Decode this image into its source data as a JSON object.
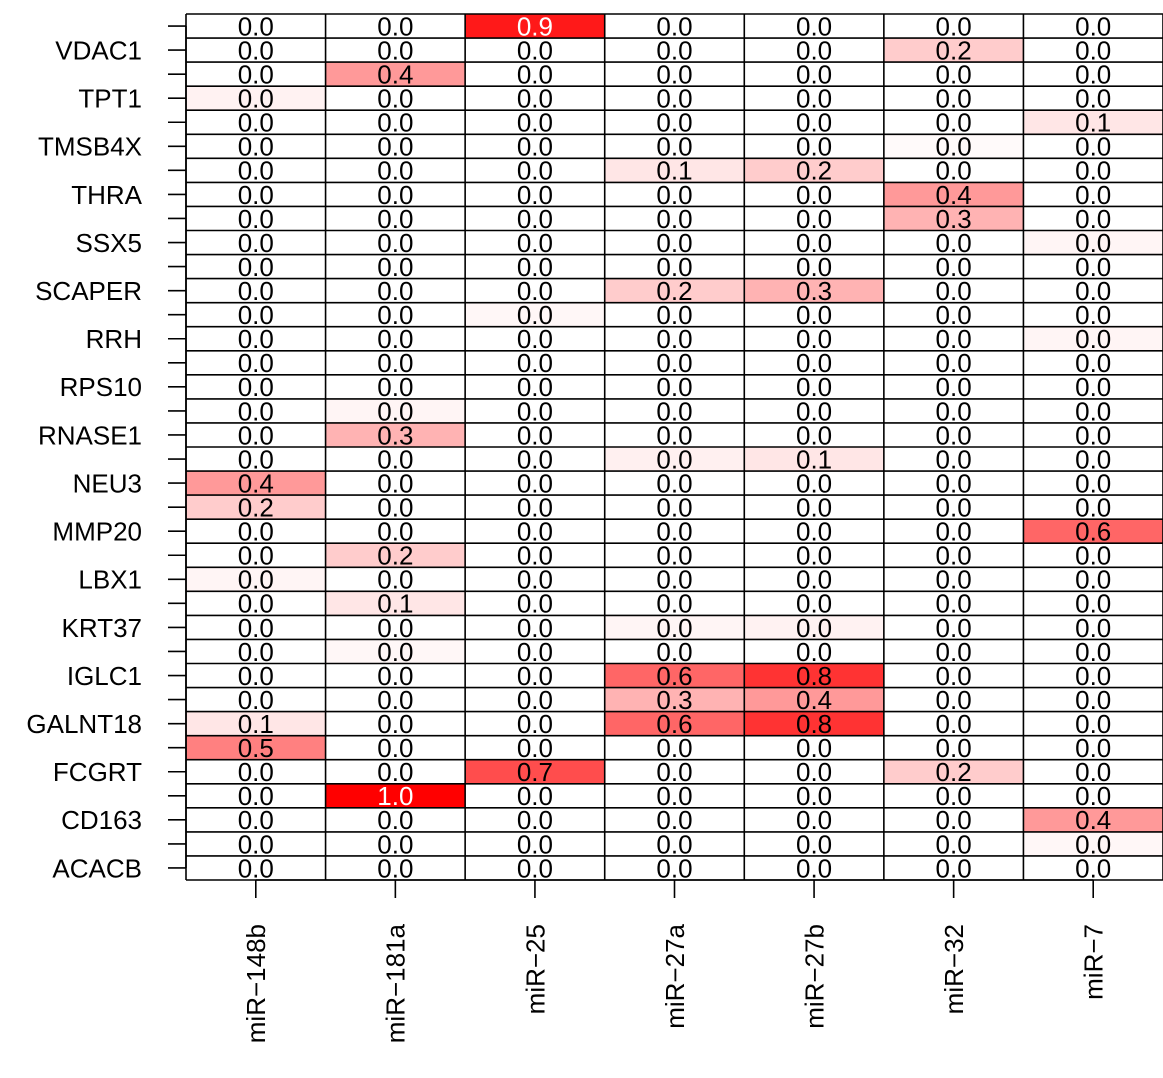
{
  "chart_data": {
    "type": "heatmap",
    "title": "",
    "xlabel": "",
    "ylabel": "",
    "x_categories": [
      "miR−148b",
      "miR−181a",
      "miR−25",
      "miR−27a",
      "miR−27b",
      "miR−32",
      "miR−7"
    ],
    "y_labels_shown": [
      "VDAC1",
      "TPT1",
      "TMSB4X",
      "THRA",
      "SSX5",
      "SCAPER",
      "RRH",
      "RPS10",
      "RNASE1",
      "NEU3",
      "MMP20",
      "LBX1",
      "KRT37",
      "IGLC1",
      "GALNT18",
      "FCGRT",
      "CD163",
      "ACACB"
    ],
    "row_count": 36,
    "value_range": [
      0,
      1
    ],
    "colors": {
      "low": "#ffffff",
      "high": "#ff0000",
      "text_dark": "#000000",
      "text_light": "#ffffff",
      "grid": "#000000"
    },
    "values": [
      [
        0.0,
        0.0,
        0.9,
        0.0,
        0.0,
        0.0,
        0.0
      ],
      [
        0.0,
        0.0,
        0.0,
        0.0,
        0.0,
        0.2,
        0.0
      ],
      [
        0.0,
        0.4,
        0.0,
        0.0,
        0.0,
        0.0,
        0.0
      ],
      [
        0.0,
        0.0,
        0.0,
        0.0,
        0.0,
        0.0,
        0.0
      ],
      [
        0.0,
        0.0,
        0.0,
        0.0,
        0.0,
        0.0,
        0.1
      ],
      [
        0.0,
        0.0,
        0.0,
        0.0,
        0.0,
        0.0,
        0.0
      ],
      [
        0.0,
        0.0,
        0.0,
        0.1,
        0.2,
        0.0,
        0.0
      ],
      [
        0.0,
        0.0,
        0.0,
        0.0,
        0.0,
        0.4,
        0.0
      ],
      [
        0.0,
        0.0,
        0.0,
        0.0,
        0.0,
        0.3,
        0.0
      ],
      [
        0.0,
        0.0,
        0.0,
        0.0,
        0.0,
        0.0,
        0.0
      ],
      [
        0.0,
        0.0,
        0.0,
        0.0,
        0.0,
        0.0,
        0.0
      ],
      [
        0.0,
        0.0,
        0.0,
        0.2,
        0.3,
        0.0,
        0.0
      ],
      [
        0.0,
        0.0,
        0.0,
        0.0,
        0.0,
        0.0,
        0.0
      ],
      [
        0.0,
        0.0,
        0.0,
        0.0,
        0.0,
        0.0,
        0.0
      ],
      [
        0.0,
        0.0,
        0.0,
        0.0,
        0.0,
        0.0,
        0.0
      ],
      [
        0.0,
        0.0,
        0.0,
        0.0,
        0.0,
        0.0,
        0.0
      ],
      [
        0.0,
        0.0,
        0.0,
        0.0,
        0.0,
        0.0,
        0.0
      ],
      [
        0.0,
        0.3,
        0.0,
        0.0,
        0.0,
        0.0,
        0.0
      ],
      [
        0.0,
        0.0,
        0.0,
        0.0,
        0.1,
        0.0,
        0.0
      ],
      [
        0.4,
        0.0,
        0.0,
        0.0,
        0.0,
        0.0,
        0.0
      ],
      [
        0.2,
        0.0,
        0.0,
        0.0,
        0.0,
        0.0,
        0.0
      ],
      [
        0.0,
        0.0,
        0.0,
        0.0,
        0.0,
        0.0,
        0.6
      ],
      [
        0.0,
        0.2,
        0.0,
        0.0,
        0.0,
        0.0,
        0.0
      ],
      [
        0.0,
        0.0,
        0.0,
        0.0,
        0.0,
        0.0,
        0.0
      ],
      [
        0.0,
        0.1,
        0.0,
        0.0,
        0.0,
        0.0,
        0.0
      ],
      [
        0.0,
        0.0,
        0.0,
        0.0,
        0.0,
        0.0,
        0.0
      ],
      [
        0.0,
        0.0,
        0.0,
        0.0,
        0.0,
        0.0,
        0.0
      ],
      [
        0.0,
        0.0,
        0.0,
        0.6,
        0.8,
        0.0,
        0.0
      ],
      [
        0.0,
        0.0,
        0.0,
        0.3,
        0.4,
        0.0,
        0.0
      ],
      [
        0.1,
        0.0,
        0.0,
        0.6,
        0.8,
        0.0,
        0.0
      ],
      [
        0.5,
        0.0,
        0.0,
        0.0,
        0.0,
        0.0,
        0.0
      ],
      [
        0.0,
        0.0,
        0.7,
        0.0,
        0.0,
        0.2,
        0.0
      ],
      [
        0.0,
        1.0,
        0.0,
        0.0,
        0.0,
        0.0,
        0.0
      ],
      [
        0.0,
        0.0,
        0.0,
        0.0,
        0.0,
        0.0,
        0.4
      ],
      [
        0.0,
        0.0,
        0.0,
        0.0,
        0.0,
        0.0,
        0.0
      ],
      [
        0.0,
        0.0,
        0.0,
        0.0,
        0.0,
        0.0,
        0.0
      ]
    ],
    "faint_tint": [
      [
        0,
        0,
        0,
        0,
        0,
        0,
        0
      ],
      [
        0,
        0,
        0,
        0,
        0,
        0,
        0
      ],
      [
        0,
        0,
        0,
        0,
        0,
        0,
        0
      ],
      [
        0.05,
        0,
        0,
        0,
        0,
        0,
        0
      ],
      [
        0,
        0,
        0,
        0,
        0,
        0,
        0
      ],
      [
        0,
        0,
        0,
        0,
        0,
        0.02,
        0
      ],
      [
        0,
        0,
        0,
        0,
        0,
        0,
        0
      ],
      [
        0,
        0,
        0,
        0,
        0,
        0,
        0
      ],
      [
        0,
        0,
        0,
        0,
        0,
        0,
        0
      ],
      [
        0,
        0,
        0,
        0,
        0,
        0,
        0.04
      ],
      [
        0,
        0,
        0,
        0,
        0,
        0,
        0
      ],
      [
        0,
        0,
        0,
        0,
        0,
        0,
        0
      ],
      [
        0,
        0,
        0.03,
        0,
        0,
        0,
        0
      ],
      [
        0,
        0,
        0,
        0,
        0,
        0,
        0.04
      ],
      [
        0,
        0,
        0,
        0,
        0,
        0,
        0
      ],
      [
        0,
        0,
        0,
        0,
        0,
        0,
        0
      ],
      [
        0,
        0.04,
        0,
        0,
        0,
        0,
        0
      ],
      [
        0,
        0,
        0,
        0,
        0,
        0,
        0
      ],
      [
        0,
        0,
        0,
        0.06,
        0,
        0,
        0
      ],
      [
        0,
        0,
        0,
        0,
        0,
        0,
        0
      ],
      [
        0,
        0,
        0,
        0,
        0,
        0,
        0
      ],
      [
        0,
        0,
        0,
        0,
        0,
        0,
        0
      ],
      [
        0,
        0,
        0,
        0,
        0,
        0,
        0
      ],
      [
        0.04,
        0,
        0,
        0,
        0,
        0,
        0
      ],
      [
        0,
        0,
        0,
        0,
        0,
        0,
        0
      ],
      [
        0,
        0,
        0,
        0.04,
        0.05,
        0,
        0
      ],
      [
        0,
        0.03,
        0,
        0,
        0,
        0,
        0
      ],
      [
        0,
        0,
        0,
        0,
        0,
        0,
        0
      ],
      [
        0,
        0,
        0,
        0,
        0,
        0,
        0
      ],
      [
        0,
        0,
        0,
        0,
        0,
        0,
        0
      ],
      [
        0,
        0,
        0,
        0,
        0,
        0,
        0
      ],
      [
        0,
        0,
        0,
        0,
        0,
        0,
        0
      ],
      [
        0,
        0,
        0,
        0,
        0,
        0,
        0
      ],
      [
        0,
        0,
        0,
        0,
        0,
        0,
        0
      ],
      [
        0,
        0,
        0,
        0,
        0,
        0,
        0.03
      ],
      [
        0,
        0,
        0,
        0,
        0,
        0,
        0
      ]
    ]
  }
}
